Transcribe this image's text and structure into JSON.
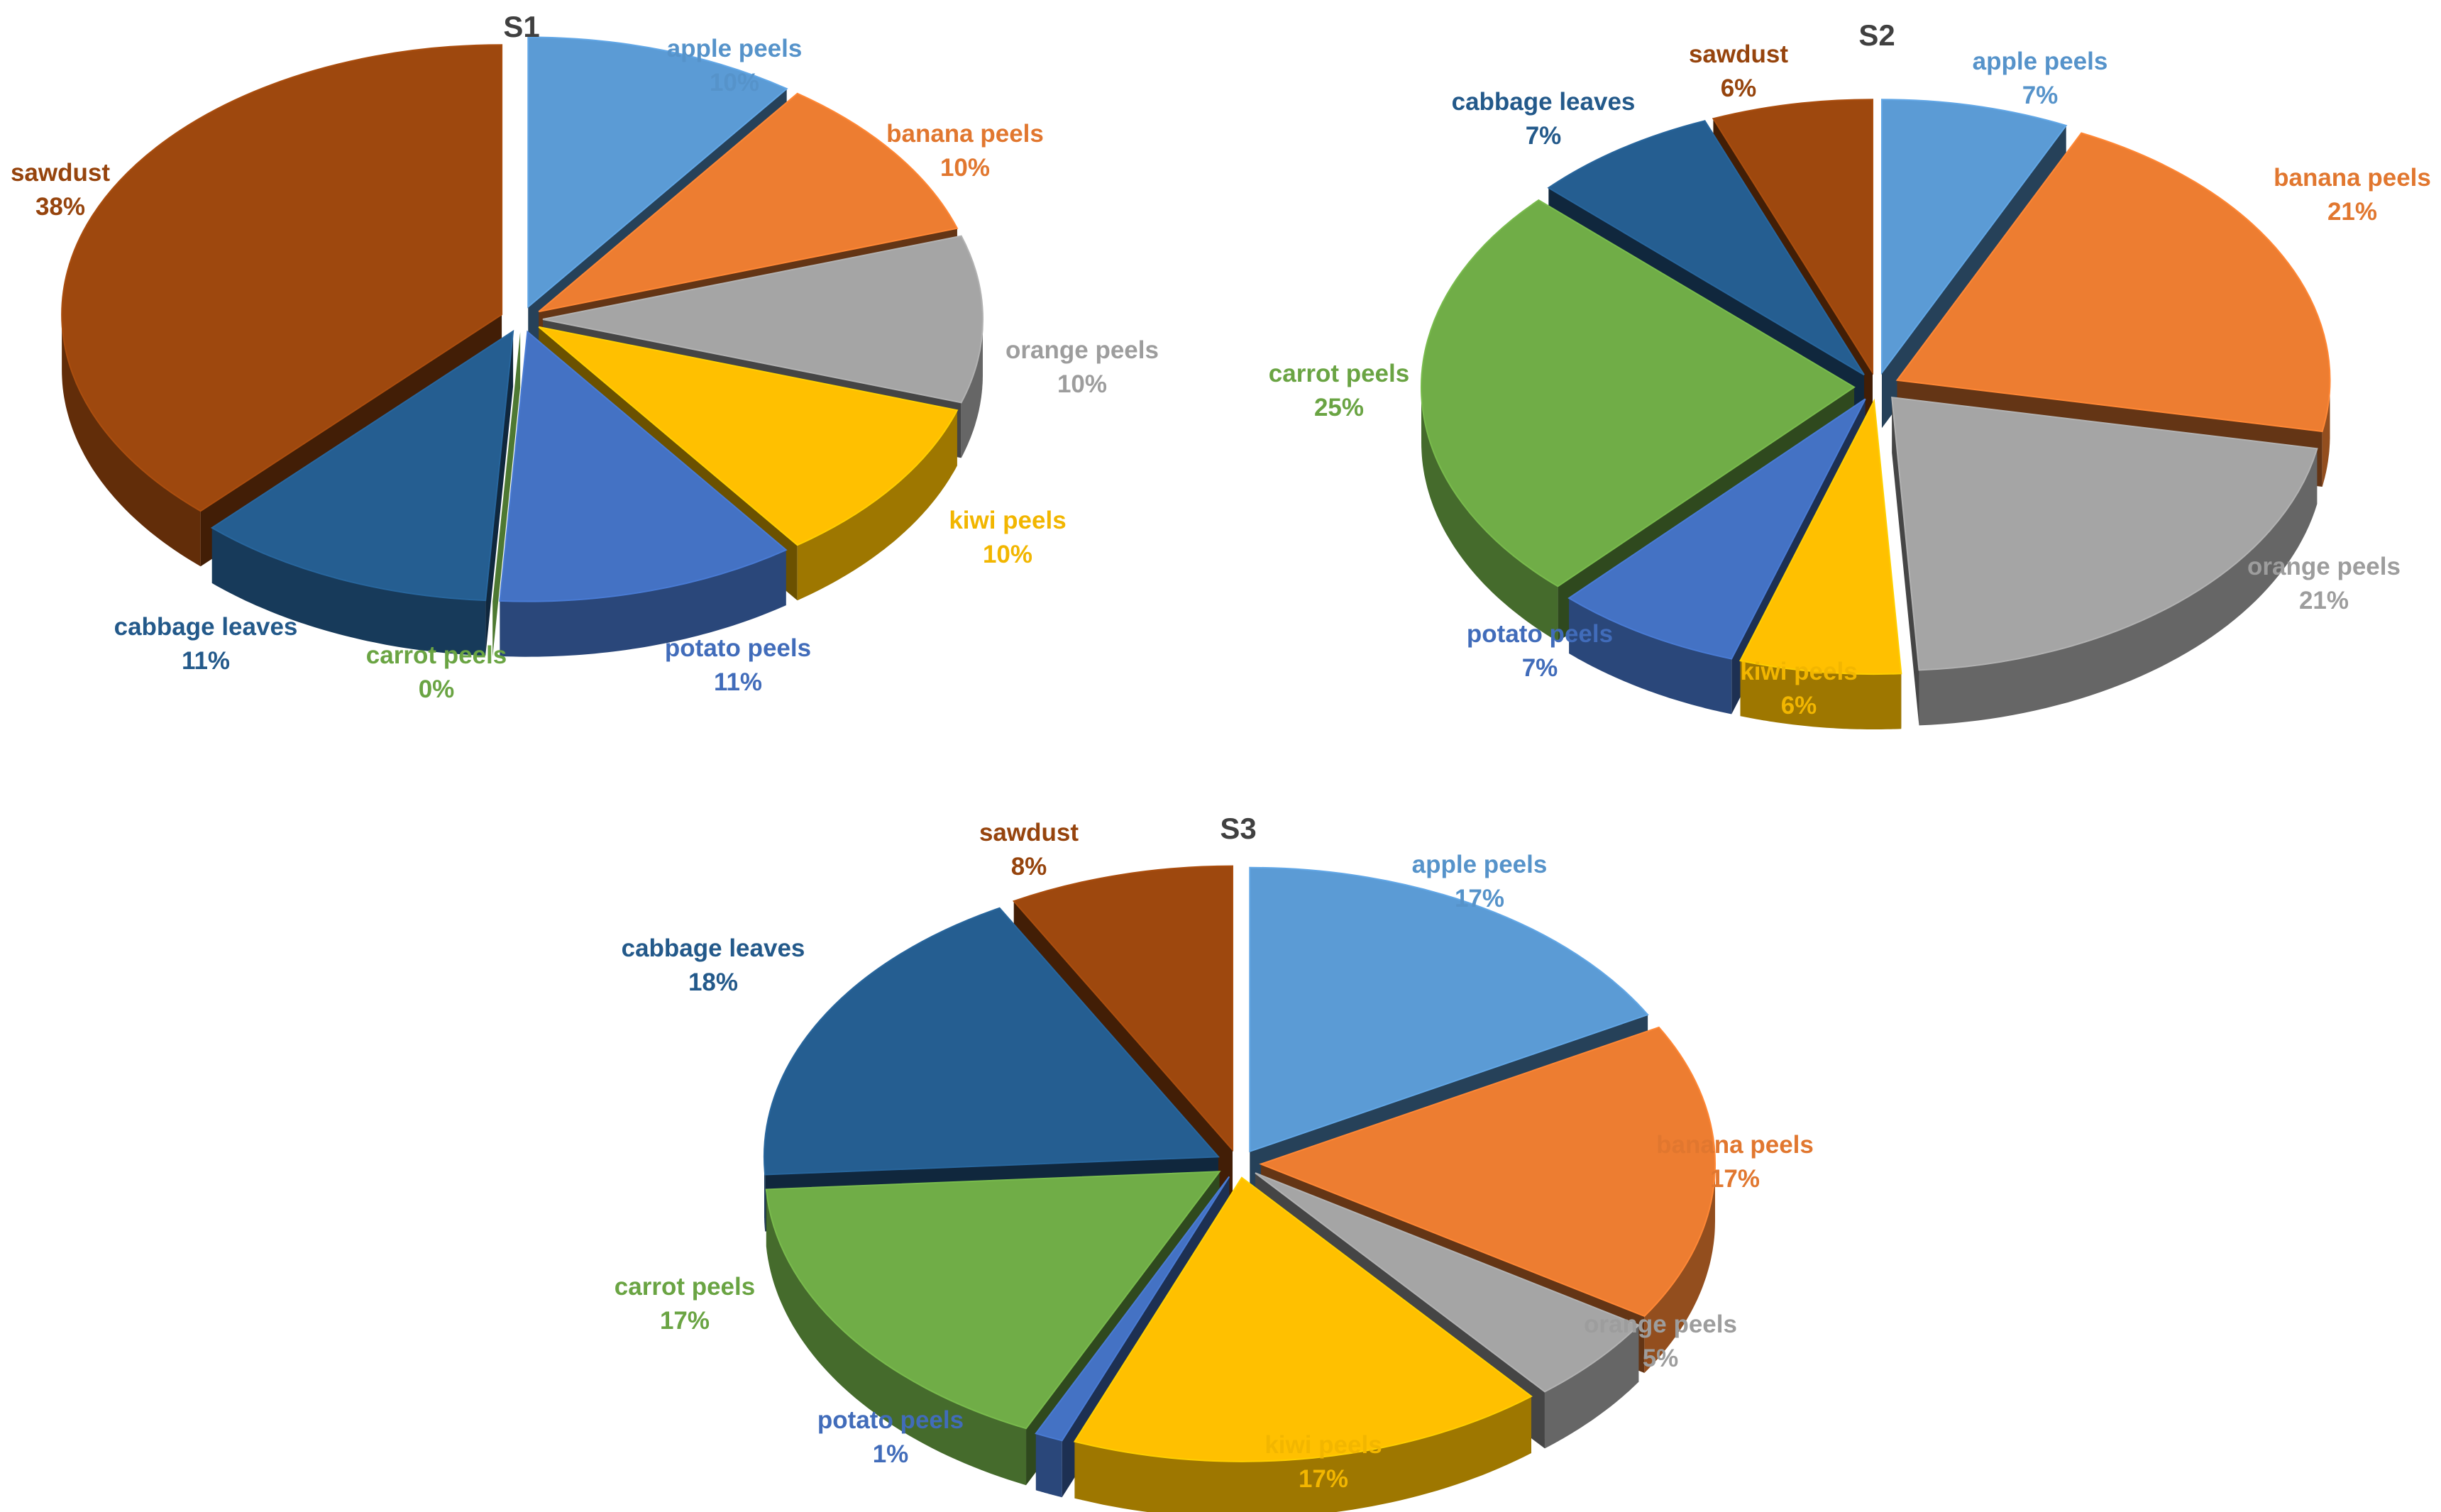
{
  "colors": {
    "apple peels": "#5B9BD5",
    "banana peels": "#ED7D31",
    "orange peels": "#A5A5A5",
    "kiwi peels": "#FFC000",
    "potato peels": "#4472C4",
    "carrot peels": "#70AD47",
    "cabbage leaves": "#255E91",
    "sawdust": "#9E480E"
  },
  "chart_data": [
    {
      "type": "pie",
      "title": "S1",
      "categories": [
        "apple peels",
        "banana peels",
        "orange peels",
        "kiwi peels",
        "potato peels",
        "carrot peels",
        "cabbage leaves",
        "sawdust"
      ],
      "values": [
        10,
        10,
        10,
        10,
        11,
        0,
        11,
        38
      ],
      "labels": [
        "10%",
        "10%",
        "10%",
        "10%",
        "11%",
        "0%",
        "11%",
        "38%"
      ],
      "style": "3d-exploded",
      "legend": "none (data labels)"
    },
    {
      "type": "pie",
      "title": "S2",
      "categories": [
        "apple peels",
        "banana peels",
        "orange peels",
        "kiwi peels",
        "potato peels",
        "carrot peels",
        "cabbage leaves",
        "sawdust"
      ],
      "values": [
        7,
        21,
        21,
        6,
        7,
        25,
        7,
        6
      ],
      "labels": [
        "7%",
        "21%",
        "21%",
        "6%",
        "7%",
        "25%",
        "7%",
        "6%"
      ],
      "style": "3d-exploded",
      "legend": "none (data labels)"
    },
    {
      "type": "pie",
      "title": "S3",
      "categories": [
        "apple peels",
        "banana peels",
        "orange peels",
        "kiwi peels",
        "potato peels",
        "carrot peels",
        "cabbage leaves",
        "sawdust"
      ],
      "values": [
        17,
        17,
        5,
        17,
        1,
        17,
        18,
        8
      ],
      "labels": [
        "17%",
        "17%",
        "5%",
        "17%",
        "1%",
        "17%",
        "18%",
        "8%"
      ],
      "style": "3d-exploded",
      "legend": "none (data labels)"
    }
  ]
}
